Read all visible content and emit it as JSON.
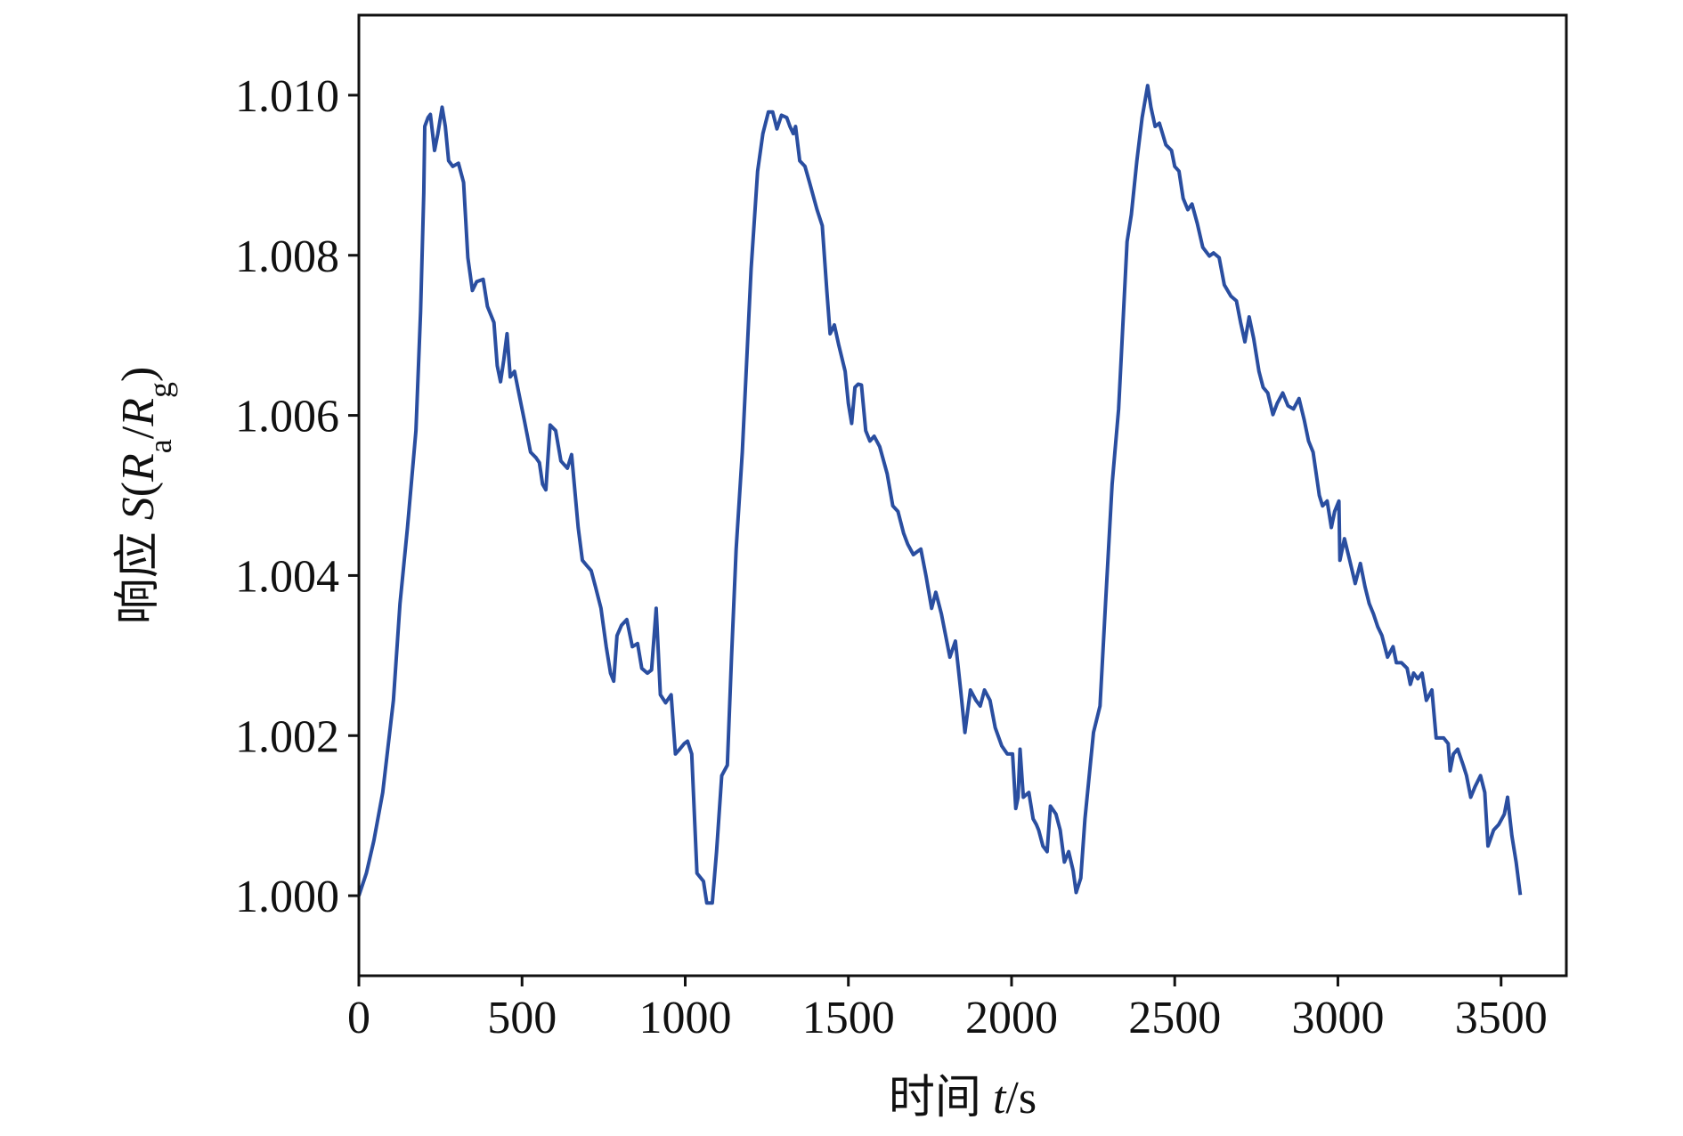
{
  "chart_data": {
    "type": "line",
    "xlabel": [
      "时间 ",
      "t",
      "/s"
    ],
    "ylabel": [
      "响应 ",
      "S",
      "(",
      "R",
      "a",
      "/",
      "R",
      "g",
      ")"
    ],
    "xlim": [
      0,
      3700
    ],
    "xticks": [
      0,
      500,
      1000,
      1500,
      2000,
      2500,
      3000,
      3500
    ],
    "ylim": [
      0.999,
      1.011
    ],
    "yticks": [
      {
        "value": 1,
        "label": "1.000"
      },
      {
        "value": 1.002,
        "label": "1.002"
      },
      {
        "value": 1.004,
        "label": "1.004"
      },
      {
        "value": 1.006,
        "label": "1.006"
      },
      {
        "value": 1.008,
        "label": "1.008"
      },
      {
        "value": 1.01,
        "label": "1.010"
      }
    ],
    "x": [
      0,
      23,
      46,
      73,
      106,
      126,
      149,
      175,
      189,
      199,
      202,
      212,
      219,
      232,
      242,
      255,
      265,
      275,
      288,
      305,
      321,
      334,
      348,
      361,
      381,
      394,
      414,
      424,
      434,
      444,
      454,
      464,
      477,
      490,
      507,
      526,
      543,
      553,
      563,
      573,
      586,
      603,
      619,
      639,
      652,
      672,
      685,
      699,
      712,
      725,
      742,
      758,
      771,
      781,
      791,
      805,
      821,
      838,
      854,
      867,
      884,
      897,
      911,
      924,
      940,
      957,
      970,
      983,
      997,
      1007,
      1020,
      1036,
      1056,
      1066,
      1083,
      1096,
      1112,
      1129,
      1142,
      1156,
      1175,
      1202,
      1222,
      1238,
      1255,
      1268,
      1281,
      1295,
      1311,
      1321,
      1331,
      1338,
      1351,
      1367,
      1381,
      1404,
      1420,
      1434,
      1444,
      1457,
      1470,
      1490,
      1500,
      1510,
      1520,
      1530,
      1540,
      1553,
      1566,
      1579,
      1596,
      1619,
      1636,
      1652,
      1669,
      1682,
      1699,
      1712,
      1722,
      1738,
      1755,
      1768,
      1785,
      1811,
      1828,
      1844,
      1857,
      1874,
      1891,
      1904,
      1917,
      1934,
      1950,
      1970,
      1987,
      2003,
      2013,
      2020,
      2026,
      2036,
      2053,
      2066,
      2076,
      2083,
      2096,
      2109,
      2119,
      2136,
      2149,
      2162,
      2175,
      2189,
      2198,
      2212,
      2225,
      2251,
      2271,
      2288,
      2308,
      2328,
      2354,
      2367,
      2384,
      2400,
      2417,
      2427,
      2440,
      2453,
      2473,
      2490,
      2500,
      2513,
      2526,
      2540,
      2553,
      2569,
      2586,
      2606,
      2619,
      2636,
      2652,
      2672,
      2689,
      2702,
      2715,
      2728,
      2742,
      2758,
      2771,
      2785,
      2801,
      2814,
      2831,
      2847,
      2864,
      2881,
      2897,
      2910,
      2924,
      2943,
      2953,
      2967,
      2980,
      2990,
      3003,
      3006,
      3020,
      3036,
      3053,
      3069,
      3083,
      3096,
      3109,
      3122,
      3135,
      3152,
      3169,
      3179,
      3195,
      3212,
      3222,
      3232,
      3245,
      3258,
      3271,
      3288,
      3301,
      3314,
      3324,
      3338,
      3344,
      3354,
      3367,
      3384,
      3394,
      3407,
      3420,
      3437,
      3450,
      3460,
      3477,
      3493,
      3510,
      3520,
      3533,
      3546,
      3559
    ],
    "series": [
      {
        "color": "#2a4ea0",
        "values": [
          1.0,
          1.00028,
          1.00069,
          1.00129,
          1.00244,
          1.00365,
          1.0046,
          1.00581,
          1.00729,
          1.00878,
          1.00961,
          1.00972,
          1.00976,
          1.00931,
          1.00952,
          1.00985,
          1.00961,
          1.00918,
          1.00911,
          1.00915,
          1.00891,
          1.00797,
          1.00756,
          1.00767,
          1.0077,
          1.00736,
          1.00716,
          1.00662,
          1.00642,
          1.00669,
          1.00702,
          1.00648,
          1.00655,
          1.00628,
          1.00594,
          1.00554,
          1.00547,
          1.00541,
          1.00514,
          1.00507,
          1.00588,
          1.00581,
          1.00543,
          1.00534,
          1.00551,
          1.0046,
          1.00419,
          1.00412,
          1.00406,
          1.00386,
          1.00359,
          1.00311,
          1.00278,
          1.00268,
          1.00325,
          1.00338,
          1.00345,
          1.00311,
          1.00315,
          1.00284,
          1.00278,
          1.00282,
          1.00359,
          1.00251,
          1.00241,
          1.00251,
          1.00177,
          1.00183,
          1.0019,
          1.00193,
          1.00177,
          1.00028,
          1.00018,
          0.99991,
          0.99991,
          1.00055,
          1.0015,
          1.00163,
          1.00298,
          1.00433,
          1.00554,
          1.00783,
          1.00905,
          1.00952,
          1.00979,
          1.00979,
          1.00958,
          1.00975,
          1.00972,
          1.00961,
          1.00952,
          1.00961,
          1.00918,
          1.00911,
          1.00891,
          1.00857,
          1.00837,
          1.00756,
          1.00702,
          1.00713,
          1.00689,
          1.00655,
          1.00615,
          1.0059,
          1.00635,
          1.00639,
          1.00638,
          1.00581,
          1.00568,
          1.00574,
          1.00561,
          1.00527,
          1.00487,
          1.0048,
          1.00453,
          1.00439,
          1.00426,
          1.0043,
          1.00433,
          1.00399,
          1.00359,
          1.00379,
          1.00352,
          1.00298,
          1.00318,
          1.00257,
          1.00204,
          1.00257,
          1.00244,
          1.00237,
          1.00257,
          1.00244,
          1.0021,
          1.00187,
          1.00177,
          1.00177,
          1.00109,
          1.00123,
          1.00183,
          1.00123,
          1.00129,
          1.00096,
          1.00089,
          1.00082,
          1.00062,
          1.00055,
          1.00112,
          1.00102,
          1.00082,
          1.00042,
          1.00055,
          1.00031,
          1.00004,
          1.00022,
          1.00096,
          1.00204,
          1.00237,
          1.00365,
          1.00514,
          1.00608,
          1.00817,
          1.00851,
          1.00918,
          1.00972,
          1.01012,
          1.00985,
          1.00961,
          1.00965,
          1.00938,
          1.00931,
          1.00911,
          1.00905,
          1.00871,
          1.00857,
          1.00864,
          1.0084,
          1.0081,
          1.00799,
          1.00803,
          1.00797,
          1.00763,
          1.00749,
          1.00743,
          1.00716,
          1.00692,
          1.00723,
          1.00696,
          1.00655,
          1.00635,
          1.00628,
          1.00601,
          1.00615,
          1.00628,
          1.00612,
          1.00608,
          1.00621,
          1.00594,
          1.00568,
          1.00554,
          1.005,
          1.00487,
          1.00493,
          1.0046,
          1.0048,
          1.00493,
          1.00419,
          1.00446,
          1.00419,
          1.0039,
          1.00415,
          1.00386,
          1.00365,
          1.00352,
          1.00336,
          1.00325,
          1.00298,
          1.00311,
          1.00291,
          1.00291,
          1.00284,
          1.00264,
          1.00278,
          1.00271,
          1.00278,
          1.00244,
          1.00257,
          1.00197,
          1.00197,
          1.00197,
          1.0019,
          1.00156,
          1.00177,
          1.00183,
          1.00163,
          1.0015,
          1.00123,
          1.00136,
          1.0015,
          1.00129,
          1.00062,
          1.00082,
          1.00089,
          1.00102,
          1.00123,
          1.00075,
          1.00042,
          1.00001
        ]
      }
    ]
  }
}
